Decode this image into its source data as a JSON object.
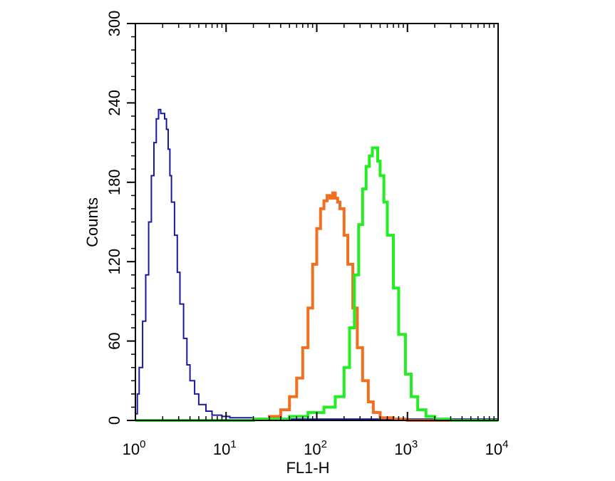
{
  "chart_data": {
    "type": "line",
    "title": "",
    "xlabel": "FL1-H",
    "ylabel": "Counts",
    "xscale": "log",
    "xlim": [
      1,
      10000
    ],
    "ylim": [
      0,
      300
    ],
    "grid": false,
    "legend": "none",
    "x_ticks": [
      {
        "value": 1,
        "base": "10",
        "exp": "0"
      },
      {
        "value": 10,
        "base": "10",
        "exp": "1"
      },
      {
        "value": 100,
        "base": "10",
        "exp": "2"
      },
      {
        "value": 1000,
        "base": "10",
        "exp": "3"
      },
      {
        "value": 10000,
        "base": "10",
        "exp": "4"
      }
    ],
    "y_ticks": [
      "0",
      "60",
      "120",
      "180",
      "240",
      "300"
    ],
    "series": [
      {
        "color": "#1a1aa0",
        "x": [
          1.0,
          1.05,
          1.1,
          1.2,
          1.3,
          1.4,
          1.5,
          1.6,
          1.7,
          1.8,
          1.9,
          2.0,
          2.1,
          2.2,
          2.3,
          2.4,
          2.5,
          2.7,
          2.9,
          3.1,
          3.4,
          3.7,
          4.0,
          4.5,
          5.0,
          6.0,
          7.0,
          9.0,
          11.0,
          13.0,
          16.0,
          20.0,
          30.0,
          50.0,
          100.0,
          300.0,
          1000.0,
          10000.0
        ],
        "y": [
          5,
          20,
          40,
          75,
          110,
          150,
          185,
          210,
          228,
          235,
          232,
          232,
          228,
          220,
          205,
          185,
          165,
          140,
          112,
          88,
          62,
          42,
          30,
          20,
          12,
          7,
          4,
          3,
          2,
          2,
          2,
          1,
          1,
          1,
          1,
          1,
          1,
          1
        ]
      },
      {
        "color": "#f07020",
        "x": [
          10.0,
          20.0,
          30.0,
          40.0,
          50.0,
          60.0,
          70.0,
          80.0,
          90.0,
          100.0,
          110.0,
          120.0,
          130.0,
          140.0,
          150.0,
          160.0,
          170.0,
          180.0,
          200.0,
          220.0,
          250.0,
          280.0,
          320.0,
          370.0,
          420.0,
          500.0,
          700.0,
          1000.0,
          10000.0
        ],
        "y": [
          0,
          1,
          3,
          8,
          18,
          32,
          55,
          85,
          118,
          145,
          160,
          166,
          170,
          168,
          172,
          168,
          165,
          160,
          140,
          118,
          85,
          55,
          30,
          14,
          6,
          2,
          1,
          0,
          0
        ]
      },
      {
        "color": "#22ee22",
        "x": [
          1.0,
          20.0,
          50.0,
          80.0,
          120.0,
          160.0,
          200.0,
          230.0,
          260.0,
          290.0,
          320.0,
          350.0,
          380.0,
          410.0,
          440.0,
          470.0,
          500.0,
          550.0,
          600.0,
          700.0,
          800.0,
          950.0,
          1100.0,
          1300.0,
          1600.0,
          2000.0,
          3000.0,
          10000.0
        ],
        "y": [
          0,
          1,
          3,
          6,
          10,
          18,
          40,
          70,
          110,
          148,
          175,
          192,
          200,
          206,
          206,
          196,
          185,
          165,
          140,
          100,
          65,
          35,
          18,
          8,
          3,
          1,
          0,
          0
        ]
      }
    ]
  }
}
